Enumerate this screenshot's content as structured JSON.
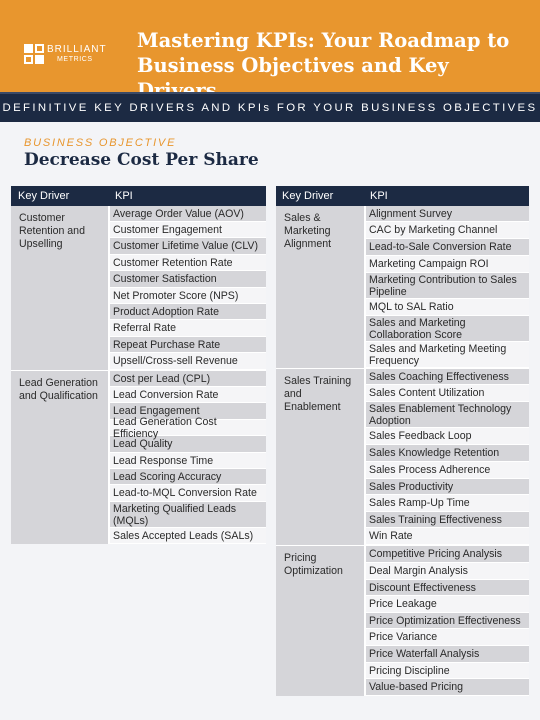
{
  "header": {
    "logo_line1": "BRILLIANT",
    "logo_line2": "METRICS",
    "title_line1": "Mastering KPIs: Your Roadmap to",
    "title_line2": "Business Objectives and Key Drivers"
  },
  "band": {
    "text": "DEFINITIVE KEY DRIVERS AND KPIs FOR YOUR BUSINESS OBJECTIVES"
  },
  "objective": {
    "label": "BUSINESS OBJECTIVE",
    "title": "Decrease Cost Per Share"
  },
  "colors": {
    "accent": "#e8962e",
    "navy": "#1c2a43",
    "row_dark": "#d5d5d9",
    "row_light": "#f5f5f7"
  },
  "left_table": {
    "col_driver": "Key Driver",
    "col_kpi": "KPI",
    "groups": [
      {
        "driver": "Customer Retention and Upselling",
        "kpis": [
          "Average Order Value (AOV)",
          "Customer Engagement",
          "Customer Lifetime Value (CLV)",
          "Customer Retention Rate",
          "Customer Satisfaction",
          "Net Promoter Score (NPS)",
          "Product Adoption Rate",
          "Referral Rate",
          "Repeat Purchase Rate",
          "Upsell/Cross-sell Revenue"
        ]
      },
      {
        "driver": "Lead Generation and Qualification",
        "kpis": [
          "Cost per Lead (CPL)",
          "Lead Conversion Rate",
          "Lead Engagement",
          "Lead Generation Cost Efficiency",
          "Lead Quality",
          "Lead Response Time",
          "Lead Scoring Accuracy",
          "Lead-to-MQL Conversion Rate",
          "Marketing Qualified Leads (MQLs)",
          "Sales Accepted Leads (SALs)"
        ]
      }
    ]
  },
  "right_table": {
    "col_driver": "Key Driver",
    "col_kpi": "KPI",
    "groups": [
      {
        "driver": "Sales & Marketing Alignment",
        "kpis": [
          "Alignment Survey",
          "CAC by Marketing Channel",
          "Lead-to-Sale Conversion Rate",
          "Marketing Campaign ROI",
          "Marketing Contribution to Sales Pipeline",
          "MQL to SAL Ratio",
          "Sales and Marketing Collaboration Score",
          "Sales and Marketing Meeting Frequency"
        ]
      },
      {
        "driver": "Sales Training and Enablement",
        "kpis": [
          "Sales Coaching Effectiveness",
          "Sales Content Utilization",
          "Sales Enablement Technology Adoption",
          "Sales Feedback Loop",
          "Sales Knowledge Retention",
          "Sales Process Adherence",
          "Sales Productivity",
          "Sales Ramp-Up Time",
          "Sales Training Effectiveness",
          "Win Rate"
        ]
      },
      {
        "driver": "Pricing Optimization",
        "kpis": [
          "Competitive Pricing Analysis",
          "Deal Margin Analysis",
          "Discount Effectiveness",
          "Price Leakage",
          "Price Optimization Effectiveness",
          "Price Variance",
          "Price Waterfall Analysis",
          "Pricing Discipline",
          "Value-based Pricing"
        ]
      }
    ]
  }
}
